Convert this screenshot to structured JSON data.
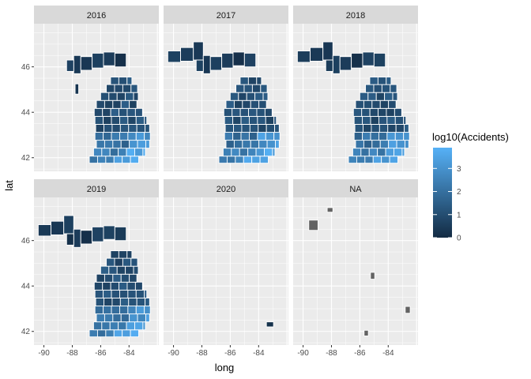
{
  "chart_data": {
    "type": "choropleth-facets",
    "xlabel": "long",
    "ylabel": "lat",
    "x_ticks": [
      -90,
      -88,
      -86,
      -84
    ],
    "y_ticks": [
      42,
      44,
      46
    ],
    "x_tick_labels": [
      "-90",
      "-88",
      "-86",
      "-84"
    ],
    "y_tick_labels": [
      "42",
      "44",
      "46"
    ],
    "xlim": [
      -90.7,
      -81.9
    ],
    "ylim": [
      41.4,
      47.9
    ],
    "facets": [
      {
        "label": "2016",
        "coverage": "full-state"
      },
      {
        "label": "2017",
        "coverage": "full-state"
      },
      {
        "label": "2018",
        "coverage": "full-state"
      },
      {
        "label": "2019",
        "coverage": "full-state"
      },
      {
        "label": "2020",
        "coverage": "single-county"
      },
      {
        "label": "NA",
        "coverage": "scattered-counties"
      }
    ],
    "legend": {
      "title": "log10(Accidents)",
      "placement": "right",
      "range": [
        0,
        3.9
      ],
      "ticks": [
        0,
        1,
        2,
        3
      ],
      "tick_labels": [
        "0",
        "1",
        "2",
        "3"
      ],
      "color_low": "#132B43",
      "color_high": "#56B1F7"
    },
    "na_color": "#636363"
  }
}
